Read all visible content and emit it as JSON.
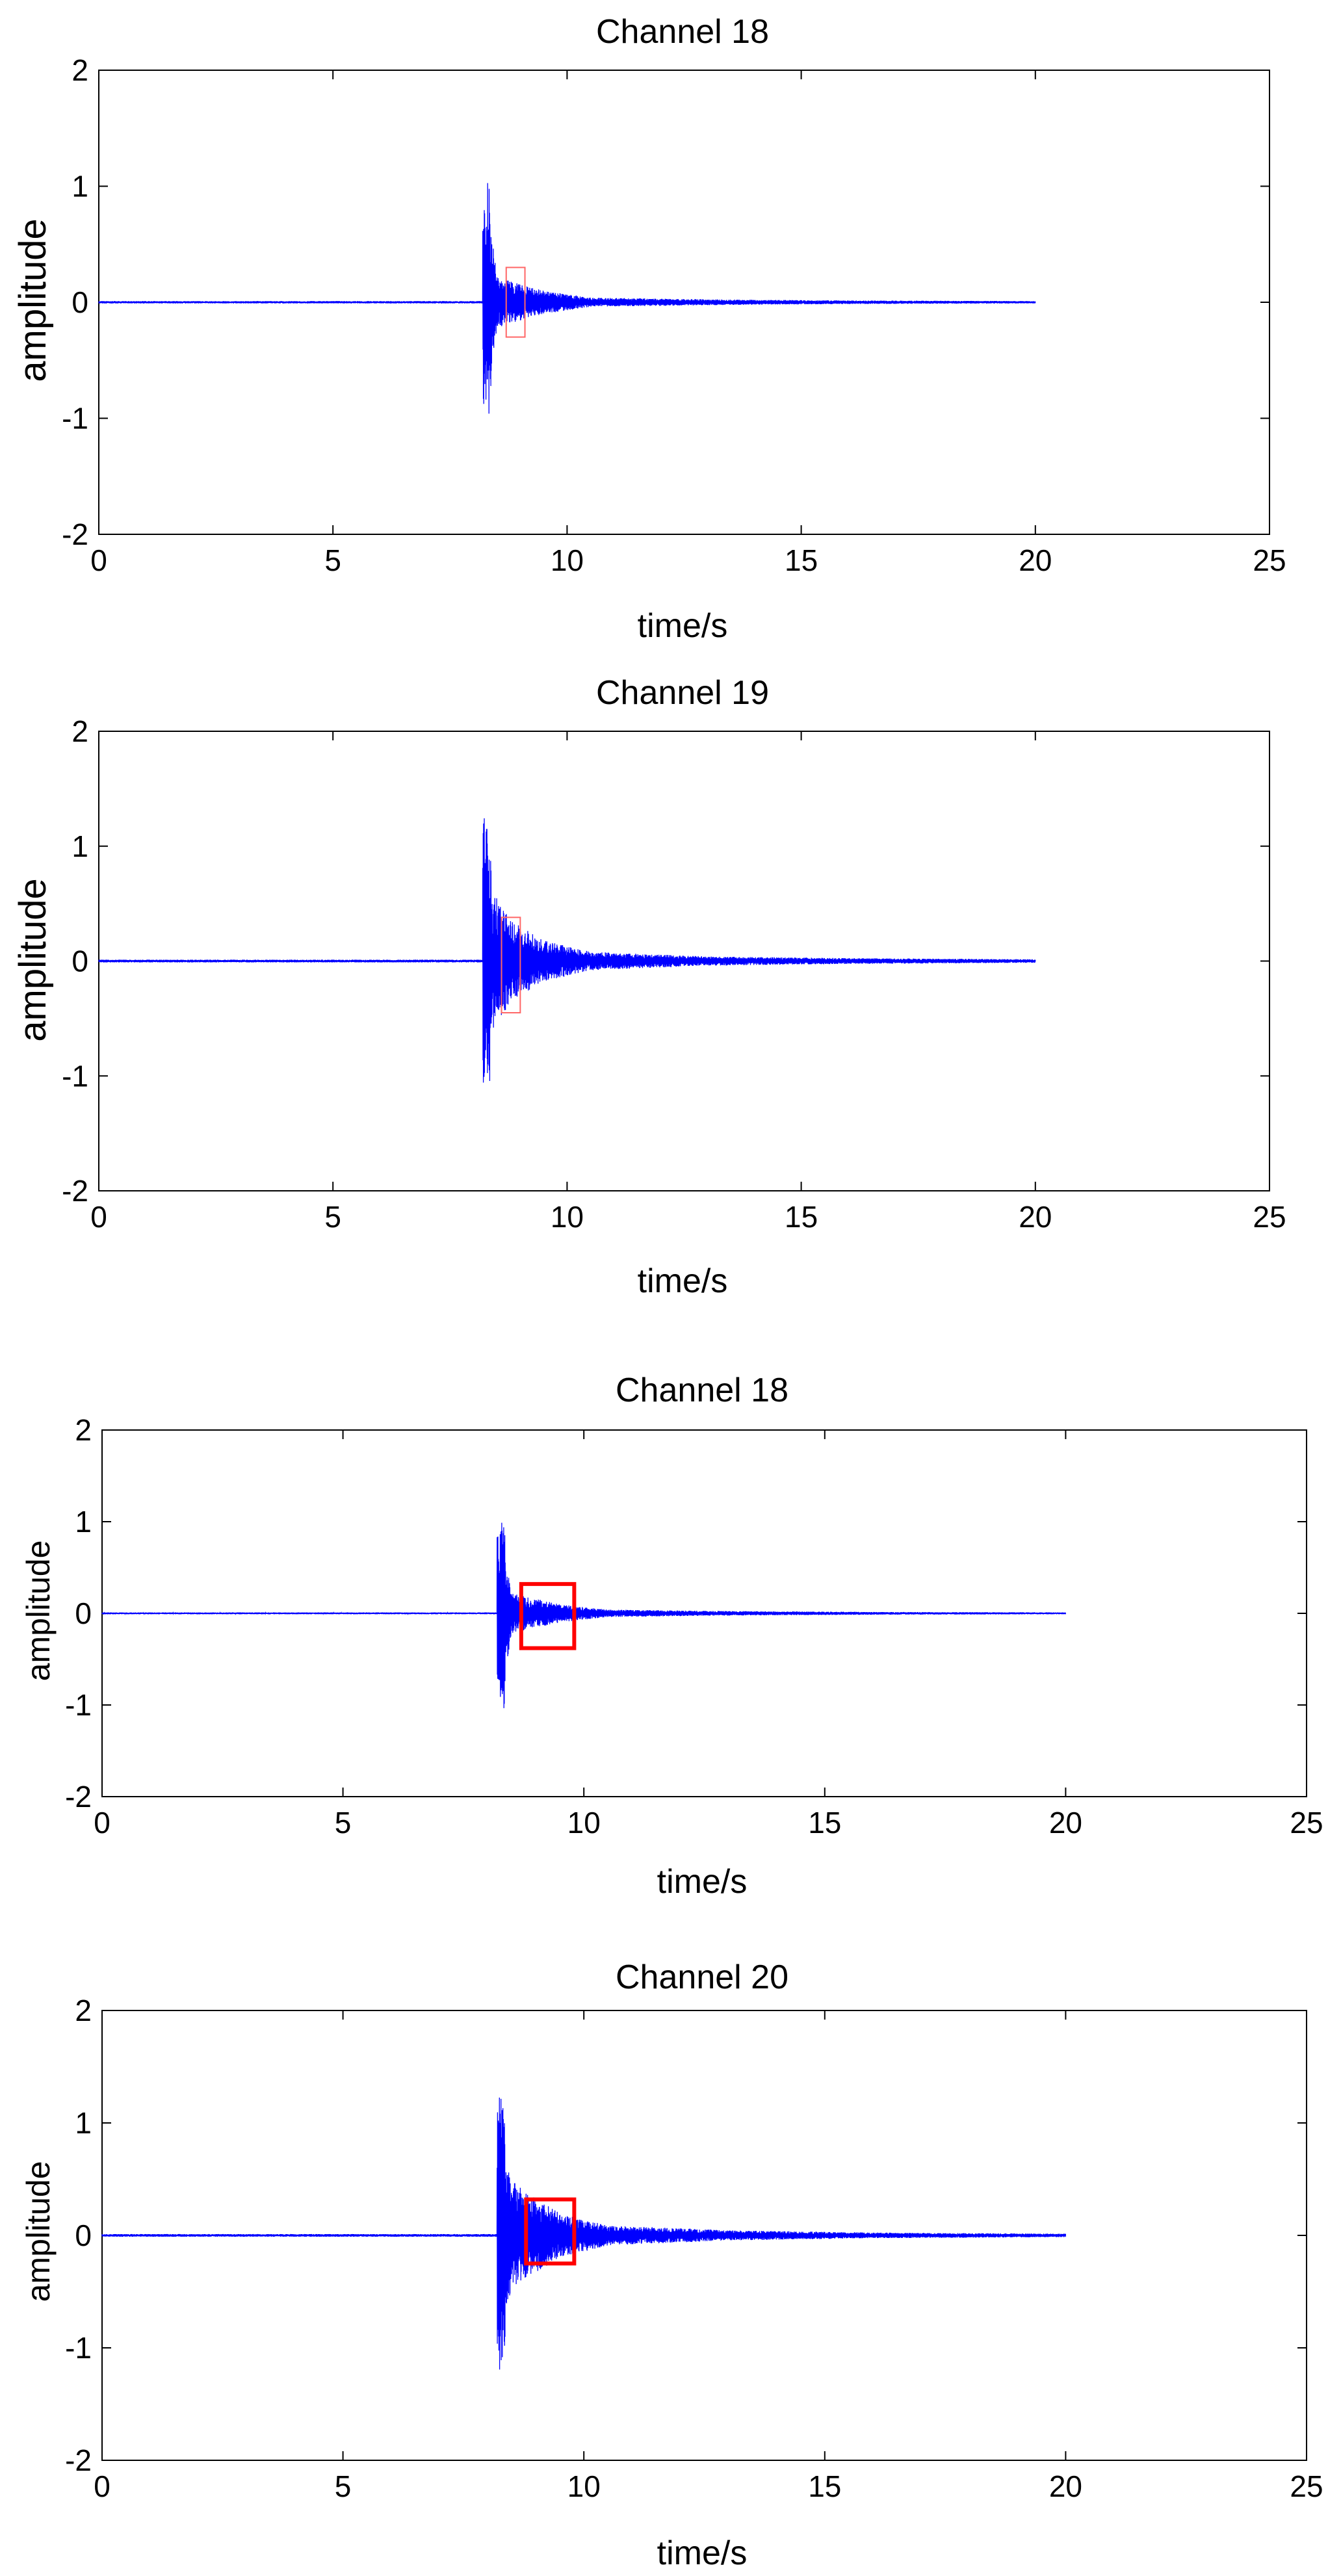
{
  "chart_data": [
    {
      "type": "line",
      "title": "Channel 18",
      "xlabel": "time/s",
      "ylabel": "amplitude",
      "xlim": [
        0,
        25
      ],
      "ylim": [
        -2,
        2
      ],
      "xticks": [
        "0",
        "5",
        "10",
        "15",
        "20",
        "25"
      ],
      "yticks": [
        "-2",
        "-1",
        "0",
        "1",
        "2"
      ],
      "grid": false,
      "series": [
        {
          "color": "#0000ff",
          "signal": {
            "start": 0,
            "end": 20,
            "event_time": 8.2,
            "noise_amplitude": 0.01,
            "peaks": [
              [
                8.1,
                0.08
              ],
              [
                8.2,
                0.88
              ],
              [
                8.25,
                -0.88
              ],
              [
                8.3,
                1.05
              ],
              [
                8.35,
                -1.05
              ],
              [
                8.4,
                0.55
              ],
              [
                8.5,
                0.22
              ],
              [
                8.8,
                0.18
              ],
              [
                9.5,
                0.1
              ],
              [
                10.5,
                0.04
              ],
              [
                13.0,
                0.025
              ],
              [
                16.0,
                0.015
              ],
              [
                20.0,
                0.01
              ]
            ]
          }
        }
      ],
      "annotations": [
        {
          "type": "box",
          "x0": 8.7,
          "x1": 9.1,
          "y0": -0.3,
          "y1": 0.3,
          "color": "#ff6666",
          "thin": true
        }
      ]
    },
    {
      "type": "line",
      "title": "Channel 19",
      "xlabel": "time/s",
      "ylabel": "amplitude",
      "xlim": [
        0,
        25
      ],
      "ylim": [
        -2,
        2
      ],
      "xticks": [
        "0",
        "5",
        "10",
        "15",
        "20",
        "25"
      ],
      "yticks": [
        "-2",
        "-1",
        "0",
        "1",
        "2"
      ],
      "grid": false,
      "series": [
        {
          "color": "#0000ff",
          "signal": {
            "start": 0,
            "end": 20,
            "event_time": 8.2,
            "noise_amplitude": 0.012,
            "peaks": [
              [
                8.1,
                0.1
              ],
              [
                8.2,
                1.2
              ],
              [
                8.25,
                -1.3
              ],
              [
                8.3,
                1.28
              ],
              [
                8.35,
                -1.2
              ],
              [
                8.4,
                0.6
              ],
              [
                8.5,
                0.55
              ],
              [
                8.8,
                0.35
              ],
              [
                9.5,
                0.18
              ],
              [
                10.5,
                0.08
              ],
              [
                13.0,
                0.04
              ],
              [
                16.0,
                0.025
              ],
              [
                20.0,
                0.015
              ]
            ]
          }
        }
      ],
      "annotations": [
        {
          "type": "box",
          "x0": 8.6,
          "x1": 9.0,
          "y0": -0.45,
          "y1": 0.38,
          "color": "#ff6666",
          "thin": true
        }
      ]
    },
    {
      "type": "line",
      "title": "Channel 18",
      "xlabel": "time/s",
      "ylabel": "amplitude",
      "xlim": [
        0,
        25
      ],
      "ylim": [
        -2,
        2
      ],
      "xticks": [
        "0",
        "5",
        "10",
        "15",
        "20",
        "25"
      ],
      "yticks": [
        "-2",
        "-1",
        "0",
        "1",
        "2"
      ],
      "grid": false,
      "series": [
        {
          "color": "#0000ff",
          "signal": {
            "start": 0,
            "end": 20,
            "event_time": 8.2,
            "noise_amplitude": 0.01,
            "peaks": [
              [
                8.1,
                0.08
              ],
              [
                8.2,
                0.88
              ],
              [
                8.25,
                -0.88
              ],
              [
                8.3,
                1.05
              ],
              [
                8.35,
                -1.05
              ],
              [
                8.4,
                0.55
              ],
              [
                8.5,
                0.22
              ],
              [
                8.8,
                0.18
              ],
              [
                9.5,
                0.1
              ],
              [
                10.5,
                0.04
              ],
              [
                13.0,
                0.025
              ],
              [
                16.0,
                0.015
              ],
              [
                20.0,
                0.01
              ]
            ]
          }
        }
      ],
      "annotations": [
        {
          "type": "box",
          "x0": 8.7,
          "x1": 9.8,
          "y0": -0.38,
          "y1": 0.32,
          "color": "#ff0000",
          "thin": false
        }
      ]
    },
    {
      "type": "line",
      "title": "Channel 20",
      "xlabel": "time/s",
      "ylabel": "amplitude",
      "xlim": [
        0,
        25
      ],
      "ylim": [
        -2,
        2
      ],
      "xticks": [
        "0",
        "5",
        "10",
        "15",
        "20",
        "25"
      ],
      "yticks": [
        "-2",
        "-1",
        "0",
        "1",
        "2"
      ],
      "grid": false,
      "series": [
        {
          "color": "#0000ff",
          "signal": {
            "start": 0,
            "end": 20,
            "event_time": 8.2,
            "noise_amplitude": 0.012,
            "peaks": [
              [
                8.1,
                0.1
              ],
              [
                8.2,
                1.1
              ],
              [
                8.25,
                -1.28
              ],
              [
                8.3,
                1.27
              ],
              [
                8.35,
                -1.1
              ],
              [
                8.4,
                0.6
              ],
              [
                8.5,
                0.5
              ],
              [
                8.8,
                0.38
              ],
              [
                9.5,
                0.2
              ],
              [
                10.5,
                0.09
              ],
              [
                13.0,
                0.045
              ],
              [
                16.0,
                0.025
              ],
              [
                20.0,
                0.015
              ]
            ]
          }
        }
      ],
      "annotations": [
        {
          "type": "box",
          "x0": 8.8,
          "x1": 9.8,
          "y0": -0.25,
          "y1": 0.32,
          "color": "#ff0000",
          "thin": false
        }
      ]
    }
  ]
}
